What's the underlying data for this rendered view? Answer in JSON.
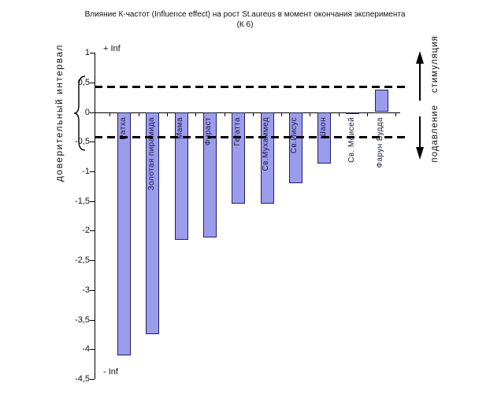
{
  "title": {
    "line1": "Влияние К-частот (Influence effect) на рост St.aureus в момент окончания эксперимента",
    "line2": "(К 6)"
  },
  "left_annotation": {
    "label": "доверительный интервал"
  },
  "axis_annotations": {
    "plus_inf": "+ Inf",
    "minus_inf": "- Inf"
  },
  "right_annotation": {
    "upper_label": "стимуляция",
    "lower_label": "подавление"
  },
  "chart_data": {
    "type": "bar",
    "title": "Влияние К-частот (Influence effect) на рост St.aureus в момент окончания эксперимента (К 6)",
    "ylabel": "доверительный интервал",
    "categories": [
      "Ратха",
      "Золотая пирамида",
      "Мама",
      "Фираст",
      "Гегатта",
      "Св.Мухаммед",
      "Св.Иисус",
      "Шаон",
      "Св. Моисей",
      "Фарун Будда"
    ],
    "values": [
      -4.1,
      -3.75,
      -2.15,
      -2.12,
      -1.55,
      -1.55,
      -1.2,
      -0.87,
      -0.02,
      0.38
    ],
    "ylim": [
      -4.5,
      1
    ],
    "y_ticks": [
      {
        "value": 1,
        "label": "1"
      },
      {
        "value": 0.5,
        "label": "0,5"
      },
      {
        "value": 0,
        "label": "0"
      },
      {
        "value": -0.5,
        "label": "-0,5"
      },
      {
        "value": -1,
        "label": "-1"
      },
      {
        "value": -1.5,
        "label": "-1,5"
      },
      {
        "value": -2,
        "label": "-2"
      },
      {
        "value": -2.5,
        "label": "-2,5"
      },
      {
        "value": -3,
        "label": "-3"
      },
      {
        "value": -3.5,
        "label": "-3,5"
      },
      {
        "value": -4,
        "label": "-4"
      },
      {
        "value": -4.5,
        "label": "-4,5"
      }
    ],
    "ref_lines": [
      {
        "value": 0.43,
        "style": "dashed",
        "color": "#000000"
      },
      {
        "value": -0.43,
        "style": "dashed",
        "color": "#000000"
      }
    ],
    "annotations": {
      "pos_infinity": "+ Inf",
      "neg_infinity": "- Inf",
      "upper_direction": "стимуляция",
      "lower_direction": "подавление"
    },
    "bar_color": "#9c9cec",
    "bar_border_color": "#202060",
    "label_color": "#181840",
    "grid": false,
    "legend": false
  }
}
